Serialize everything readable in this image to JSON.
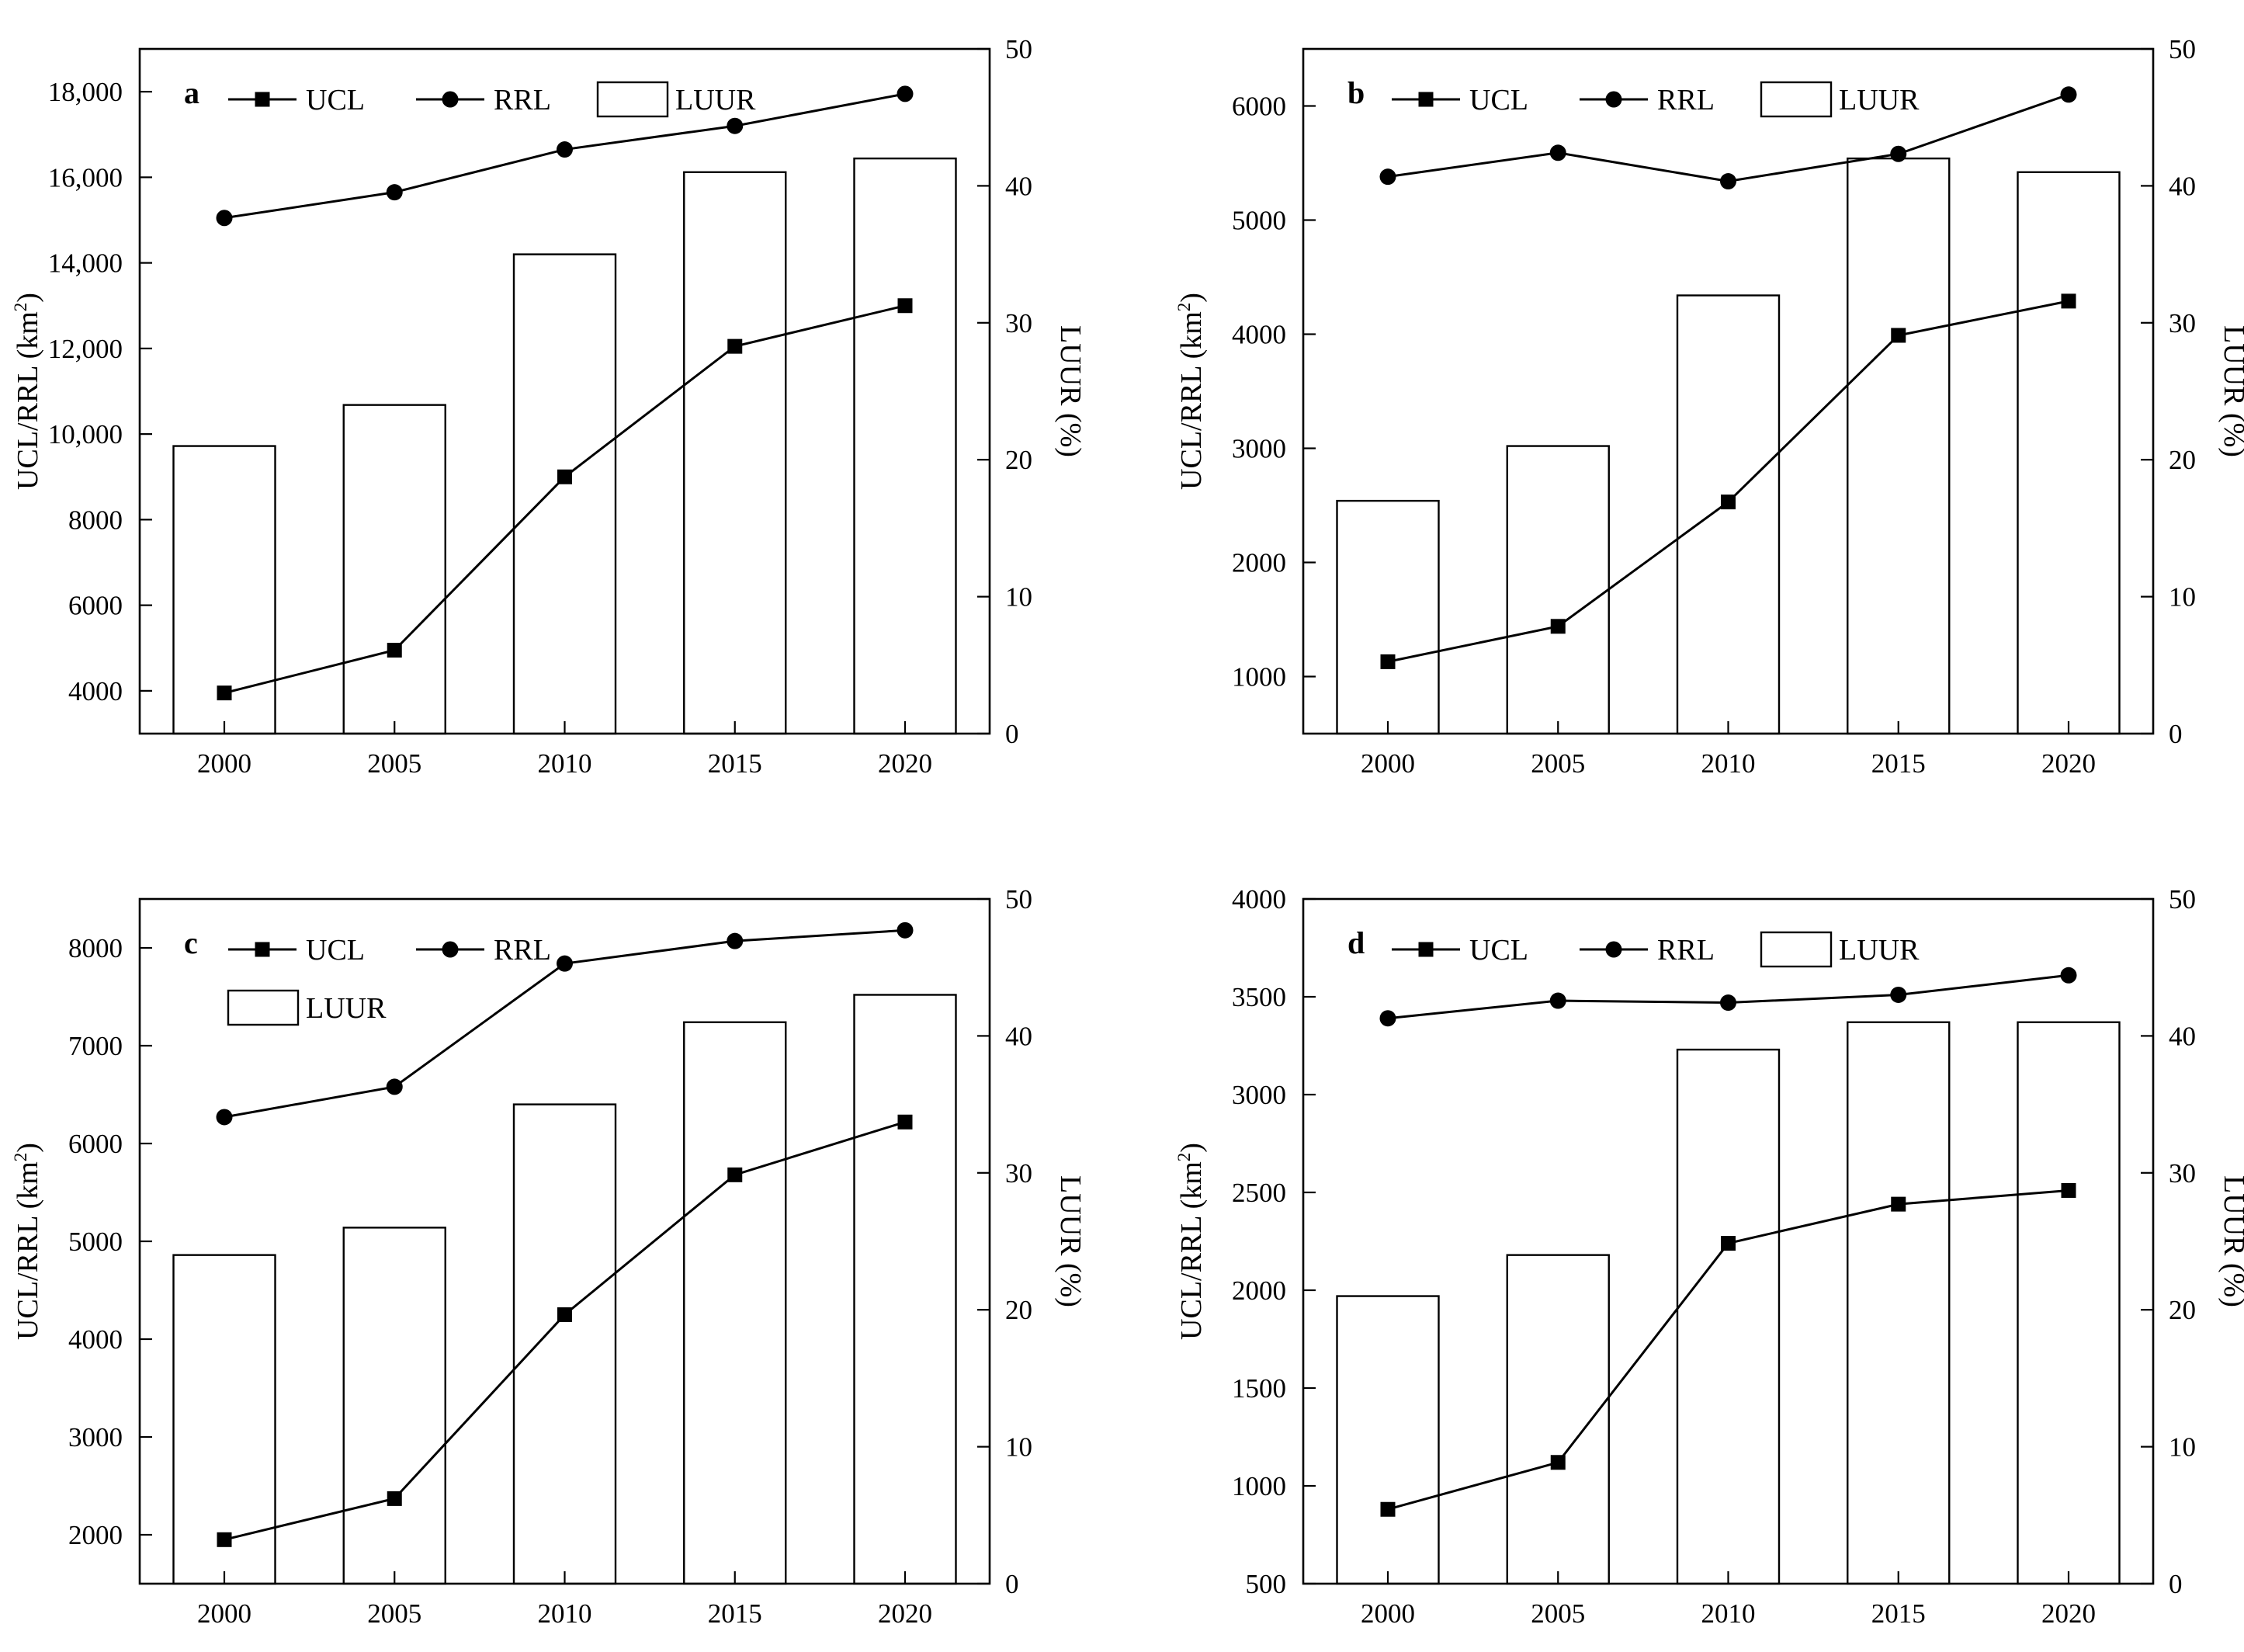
{
  "figure": {
    "x_categories": [
      "2000",
      "2005",
      "2010",
      "2015",
      "2020"
    ],
    "legend_labels": {
      "ucl": "UCL",
      "rrl": "RRL",
      "luur": "LUUR"
    },
    "left_axis_title": "UCL/RRL (km",
    "left_axis_title_sup": "2",
    "left_axis_title_tail": ")",
    "right_axis_title": "LUUR (%)"
  },
  "chart_data": [
    {
      "type": "bar+line",
      "panel": "a",
      "categories": [
        "2000",
        "2005",
        "2010",
        "2015",
        "2020"
      ],
      "series": [
        {
          "name": "UCL",
          "axis": "left",
          "marker": "square",
          "values": [
            3950,
            4950,
            9000,
            12050,
            13000
          ]
        },
        {
          "name": "RRL",
          "axis": "left",
          "marker": "circle",
          "values": [
            15050,
            15650,
            16650,
            17200,
            17950
          ]
        },
        {
          "name": "LUUR",
          "axis": "right",
          "kind": "bar",
          "values": [
            21,
            24,
            35,
            41,
            42
          ]
        }
      ],
      "left_ylim": [
        3000,
        19000
      ],
      "left_ticks": [
        4000,
        6000,
        8000,
        10000,
        12000,
        14000,
        16000,
        18000
      ],
      "left_tick_labels": [
        "4000",
        "6000",
        "8000",
        "10,000",
        "12,000",
        "14,000",
        "16,000",
        "18,000"
      ],
      "right_ylim": [
        0,
        50
      ],
      "right_ticks": [
        0,
        10,
        20,
        30,
        40,
        50
      ],
      "right_tick_labels": [
        "0",
        "10",
        "20",
        "30",
        "40",
        "50"
      ],
      "legend_layout": "one-row"
    },
    {
      "type": "bar+line",
      "panel": "b",
      "categories": [
        "2000",
        "2005",
        "2010",
        "2015",
        "2020"
      ],
      "series": [
        {
          "name": "UCL",
          "axis": "left",
          "marker": "square",
          "values": [
            1130,
            1440,
            2530,
            3990,
            4290
          ]
        },
        {
          "name": "RRL",
          "axis": "left",
          "marker": "circle",
          "values": [
            5380,
            5590,
            5340,
            5580,
            6100
          ]
        },
        {
          "name": "LUUR",
          "axis": "right",
          "kind": "bar",
          "values": [
            17,
            21,
            32,
            42,
            41
          ]
        }
      ],
      "left_ylim": [
        500,
        6500
      ],
      "left_ticks": [
        1000,
        2000,
        3000,
        4000,
        5000,
        6000
      ],
      "left_tick_labels": [
        "1000",
        "2000",
        "3000",
        "4000",
        "5000",
        "6000"
      ],
      "right_ylim": [
        0,
        50
      ],
      "right_ticks": [
        0,
        10,
        20,
        30,
        40,
        50
      ],
      "right_tick_labels": [
        "0",
        "10",
        "20",
        "30",
        "40",
        "50"
      ],
      "legend_layout": "one-row"
    },
    {
      "type": "bar+line",
      "panel": "c",
      "categories": [
        "2000",
        "2005",
        "2010",
        "2015",
        "2020"
      ],
      "series": [
        {
          "name": "UCL",
          "axis": "left",
          "marker": "square",
          "values": [
            1950,
            2370,
            4250,
            5680,
            6220
          ]
        },
        {
          "name": "RRL",
          "axis": "left",
          "marker": "circle",
          "values": [
            6270,
            6580,
            7840,
            8070,
            8180
          ]
        },
        {
          "name": "LUUR",
          "axis": "right",
          "kind": "bar",
          "values": [
            24,
            26,
            35,
            41,
            43
          ]
        }
      ],
      "left_ylim": [
        1500,
        8500
      ],
      "left_ticks": [
        2000,
        3000,
        4000,
        5000,
        6000,
        7000,
        8000
      ],
      "left_tick_labels": [
        "2000",
        "3000",
        "4000",
        "5000",
        "6000",
        "7000",
        "8000"
      ],
      "right_ylim": [
        0,
        50
      ],
      "right_ticks": [
        0,
        10,
        20,
        30,
        40,
        50
      ],
      "right_tick_labels": [
        "0",
        "10",
        "20",
        "30",
        "40",
        "50"
      ],
      "legend_layout": "two-rows"
    },
    {
      "type": "bar+line",
      "panel": "d",
      "categories": [
        "2000",
        "2005",
        "2010",
        "2015",
        "2020"
      ],
      "series": [
        {
          "name": "UCL",
          "axis": "left",
          "marker": "square",
          "values": [
            880,
            1120,
            2240,
            2440,
            2510
          ]
        },
        {
          "name": "RRL",
          "axis": "left",
          "marker": "circle",
          "values": [
            3390,
            3480,
            3470,
            3510,
            3610
          ]
        },
        {
          "name": "LUUR",
          "axis": "right",
          "kind": "bar",
          "values": [
            21,
            24,
            39,
            41,
            41
          ]
        }
      ],
      "left_ylim": [
        500,
        4000
      ],
      "left_ticks": [
        500,
        1000,
        1500,
        2000,
        2500,
        3000,
        3500,
        4000
      ],
      "left_tick_labels": [
        "500",
        "1000",
        "1500",
        "2000",
        "2500",
        "3000",
        "3500",
        "4000"
      ],
      "right_ylim": [
        0,
        50
      ],
      "right_ticks": [
        0,
        10,
        20,
        30,
        40,
        50
      ],
      "right_tick_labels": [
        "0",
        "10",
        "20",
        "30",
        "40",
        "50"
      ],
      "legend_layout": "one-row"
    }
  ]
}
